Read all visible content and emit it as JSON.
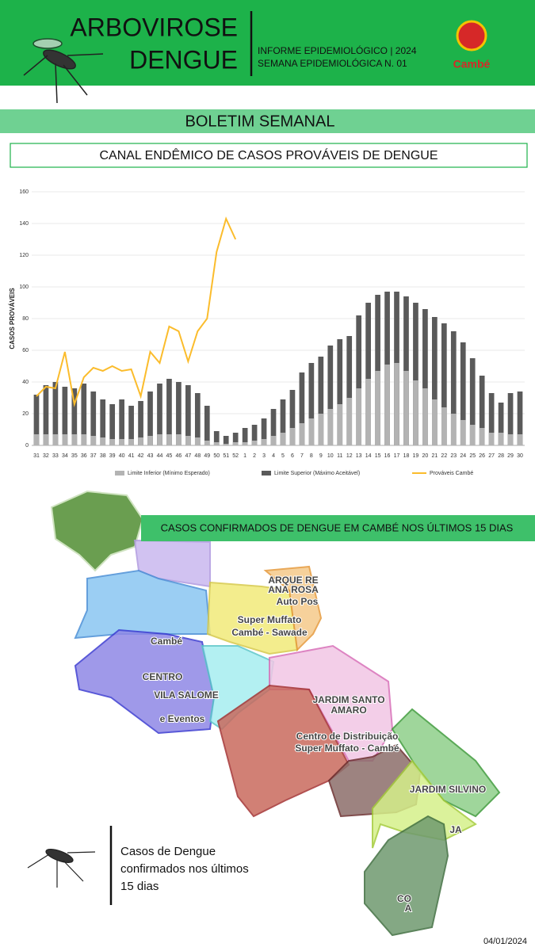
{
  "header": {
    "title_line1": "ARBOVIROSE",
    "title_line2": "DENGUE",
    "info_line1": "INFORME EPIDEMIOLÓGICO | 2024",
    "info_line2": "SEMANA EPIDEMIOLÓGICA  N. 01",
    "logo": "Cambé"
  },
  "banner": "BOLETIM SEMANAL",
  "chart_data": {
    "type": "bar",
    "title": "CANAL ENDÊMICO DE CASOS PROVÁVEIS DE DENGUE",
    "y_label": "CASOS PROVÁVEIS",
    "categories": [
      "31",
      "32",
      "33",
      "34",
      "35",
      "36",
      "37",
      "38",
      "39",
      "40",
      "41",
      "42",
      "43",
      "44",
      "45",
      "46",
      "47",
      "48",
      "49",
      "50",
      "51",
      "52",
      "1",
      "2",
      "3",
      "4",
      "5",
      "6",
      "7",
      "8",
      "9",
      "10",
      "11",
      "12",
      "13",
      "14",
      "15",
      "16",
      "17",
      "18",
      "19",
      "20",
      "21",
      "22",
      "23",
      "24",
      "25",
      "26",
      "27",
      "28",
      "29",
      "30"
    ],
    "ylim": [
      0,
      160
    ],
    "yticks": [
      0,
      20,
      40,
      60,
      80,
      100,
      120,
      140,
      160
    ],
    "series": [
      {
        "name": "Limite Inferior (Mínimo Esperado)",
        "type": "bar",
        "color": "#b3b3b3",
        "values": [
          7,
          7,
          7,
          7,
          7,
          7,
          6,
          5,
          4,
          4,
          4,
          5,
          6,
          7,
          7,
          7,
          6,
          5,
          3,
          2,
          1,
          2,
          2,
          3,
          4,
          6,
          8,
          11,
          14,
          17,
          20,
          23,
          26,
          30,
          36,
          42,
          47,
          51,
          52,
          47,
          41,
          36,
          29,
          24,
          20,
          16,
          13,
          11,
          8,
          8,
          7,
          7
        ]
      },
      {
        "name": "Limite Superior (Máximo Aceitável)",
        "type": "bar",
        "color": "#5a5a5a",
        "values": [
          32,
          38,
          40,
          37,
          36,
          39,
          34,
          29,
          26,
          29,
          25,
          28,
          34,
          39,
          42,
          40,
          38,
          33,
          25,
          9,
          6,
          8,
          11,
          13,
          17,
          23,
          29,
          35,
          46,
          52,
          56,
          63,
          67,
          69,
          82,
          90,
          95,
          97,
          97,
          94,
          90,
          86,
          81,
          77,
          72,
          65,
          55,
          44,
          33,
          27,
          33,
          34
        ]
      },
      {
        "name": "Prováveis Cambé",
        "type": "line",
        "color": "#fbbc2c",
        "values": [
          31,
          37,
          36,
          59,
          26,
          43,
          49,
          47,
          50,
          47,
          48,
          31,
          59,
          52,
          75,
          72,
          53,
          72,
          80,
          122,
          143,
          130,
          null,
          null,
          null,
          null,
          null,
          null,
          null,
          null,
          null,
          null,
          null,
          null,
          null,
          null,
          null,
          null,
          null,
          null,
          null,
          null,
          null,
          null,
          null,
          null,
          null,
          null,
          null,
          null,
          null,
          null
        ]
      }
    ]
  },
  "map": {
    "title": "CASOS CONFIRMADOS DE DENGUE EM CAMBÉ NOS ÚLTIMOS 15 DIAS",
    "labels": [
      "Cambé",
      "CENTRO",
      "VILA SALOME",
      "e Eventos",
      "Super Muffato",
      "Cambé - Sawade",
      "ARQUE RE",
      "ANA ROSA",
      "Auto Pos",
      "JARDIM SANTO",
      "AMARO",
      "Centro de Distribuição",
      "Super Muffato - Cambé",
      "JARDIM SILVINO",
      "JA",
      "CO",
      "A"
    ]
  },
  "footer": {
    "caption": [
      "Casos de Dengue",
      "confirmados nos últimos",
      "15 dias"
    ],
    "date": "04/01/2024"
  }
}
